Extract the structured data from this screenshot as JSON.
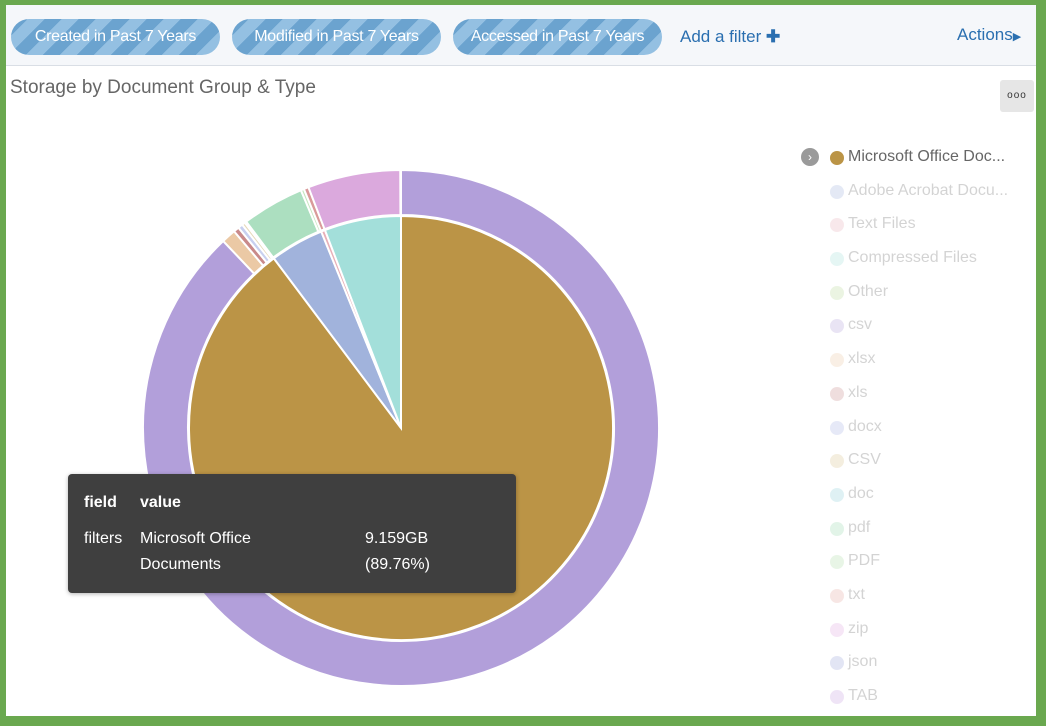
{
  "filters": [
    "Created in Past 7 Years",
    "Modified in Past 7 Years",
    "Accessed in Past 7 Years"
  ],
  "add_filter": "Add a filter",
  "actions": "Actions",
  "panel_menu": "ooo",
  "chart_data": {
    "type": "pie",
    "title": "Storage by Document Group & Type",
    "inner": [
      {
        "name": "Microsoft Office Documents",
        "value": 89.76,
        "color": "#bb9446"
      },
      {
        "name": "Adobe Acrobat Documents",
        "value": 4.1,
        "color": "#a1b3dc"
      },
      {
        "name": "Text Files",
        "value": 0.3,
        "color": "#e8b0b8"
      },
      {
        "name": "Compressed Files",
        "value": 5.84,
        "color": "#a3dfda"
      }
    ],
    "outer": [
      {
        "name": "csv",
        "value": 87.9,
        "color": "#b29fda"
      },
      {
        "name": "xlsx",
        "value": 0.9,
        "color": "#ebc9a5"
      },
      {
        "name": "xls",
        "value": 0.35,
        "color": "#c98a8a"
      },
      {
        "name": "docx",
        "value": 0.3,
        "color": "#c8d0ef"
      },
      {
        "name": "CSV",
        "value": 0.2,
        "color": "#e6d8b8"
      },
      {
        "name": "doc",
        "value": 0.11,
        "color": "#b8e0e6"
      },
      {
        "name": "pdf",
        "value": 3.9,
        "color": "#acdfc0"
      },
      {
        "name": "PDF",
        "value": 0.2,
        "color": "#c5e6bf"
      },
      {
        "name": "txt",
        "value": 0.3,
        "color": "#d99a9a"
      },
      {
        "name": "zip",
        "value": 5.8,
        "color": "#dba9dd"
      },
      {
        "name": "json",
        "value": 0.02,
        "color": "#a9b0e0"
      },
      {
        "name": "TAB",
        "value": 0.02,
        "color": "#c9a9e0"
      }
    ],
    "legend_position": "right",
    "legend": [
      {
        "label": "Microsoft Office Doc...",
        "color": "#bb9446",
        "active": true
      },
      {
        "label": "Adobe Acrobat Docu...",
        "color": "#a1b3dc"
      },
      {
        "label": "Text Files",
        "color": "#e8b0b8"
      },
      {
        "label": "Compressed Files",
        "color": "#a3dfda"
      },
      {
        "label": "Other",
        "color": "#b9d99a"
      },
      {
        "label": "csv",
        "color": "#b29fda"
      },
      {
        "label": "xlsx",
        "color": "#ebc9a5"
      },
      {
        "label": "xls",
        "color": "#c98a8a"
      },
      {
        "label": "docx",
        "color": "#a9b3e6"
      },
      {
        "label": "CSV",
        "color": "#d9c48f"
      },
      {
        "label": "doc",
        "color": "#8fd0da"
      },
      {
        "label": "pdf",
        "color": "#9ad9b0"
      },
      {
        "label": "PDF",
        "color": "#b0dca8"
      },
      {
        "label": "txt",
        "color": "#e6a8a0"
      },
      {
        "label": "zip",
        "color": "#e0a8e0"
      },
      {
        "label": "json",
        "color": "#9aa3d9"
      },
      {
        "label": "TAB",
        "color": "#c9a0e0"
      }
    ],
    "tooltip": {
      "h_field": "field",
      "h_value": "value",
      "field": "filters",
      "value_line1": "Microsoft Office",
      "value_line2": "Documents",
      "size": "9.159GB",
      "percent": "(89.76%)"
    }
  }
}
